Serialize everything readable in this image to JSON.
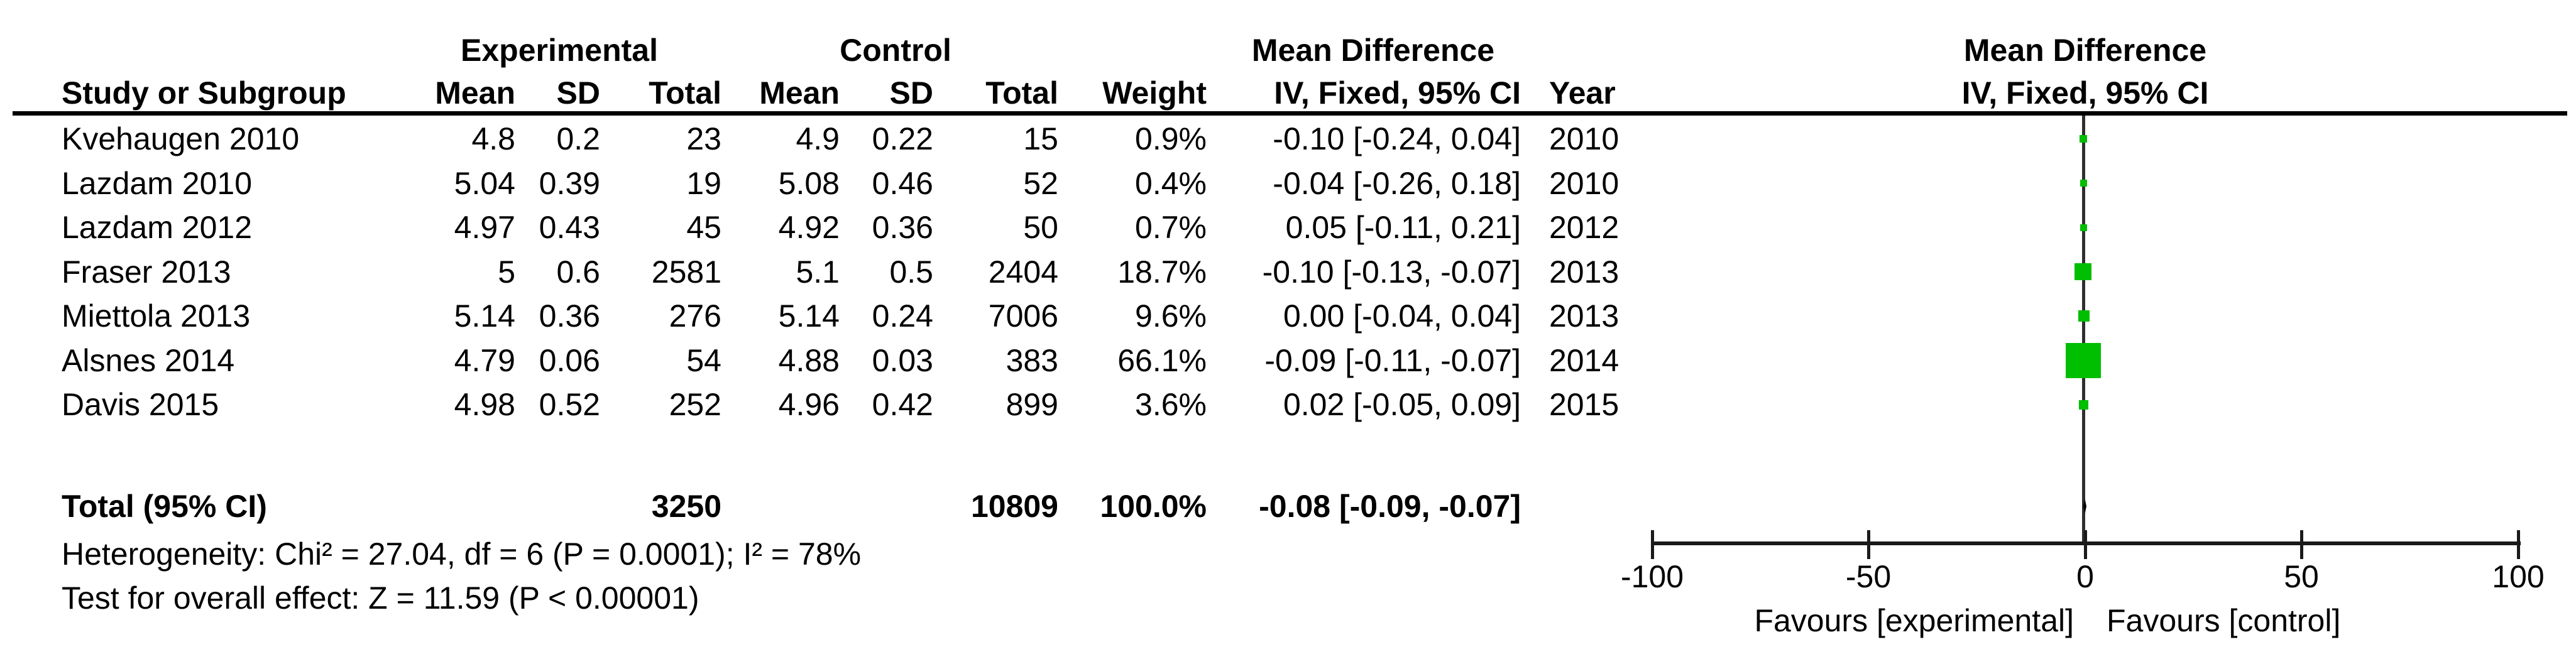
{
  "table": {
    "group_headers": {
      "experimental": "Experimental",
      "control": "Control",
      "mean_difference": "Mean Difference"
    },
    "columns": {
      "study": "Study or Subgroup",
      "mean1": "Mean",
      "sd1": "SD",
      "total1": "Total",
      "mean2": "Mean",
      "sd2": "SD",
      "total2": "Total",
      "weight": "Weight",
      "ci": "IV, Fixed, 95% CI",
      "year": "Year"
    },
    "rows": [
      {
        "study": "Kvehaugen 2010",
        "mean1": "4.8",
        "sd1": "0.2",
        "total1": "23",
        "mean2": "4.9",
        "sd2": "0.22",
        "total2": "15",
        "weight": "0.9%",
        "ci": "-0.10 [-0.24, 0.04]",
        "year": "2010"
      },
      {
        "study": "Lazdam 2010",
        "mean1": "5.04",
        "sd1": "0.39",
        "total1": "19",
        "mean2": "5.08",
        "sd2": "0.46",
        "total2": "52",
        "weight": "0.4%",
        "ci": "-0.04 [-0.26, 0.18]",
        "year": "2010"
      },
      {
        "study": "Lazdam 2012",
        "mean1": "4.97",
        "sd1": "0.43",
        "total1": "45",
        "mean2": "4.92",
        "sd2": "0.36",
        "total2": "50",
        "weight": "0.7%",
        "ci": "0.05 [-0.11, 0.21]",
        "year": "2012"
      },
      {
        "study": "Fraser 2013",
        "mean1": "5",
        "sd1": "0.6",
        "total1": "2581",
        "mean2": "5.1",
        "sd2": "0.5",
        "total2": "2404",
        "weight": "18.7%",
        "ci": "-0.10 [-0.13, -0.07]",
        "year": "2013"
      },
      {
        "study": "Miettola 2013",
        "mean1": "5.14",
        "sd1": "0.36",
        "total1": "276",
        "mean2": "5.14",
        "sd2": "0.24",
        "total2": "7006",
        "weight": "9.6%",
        "ci": "0.00 [-0.04, 0.04]",
        "year": "2013"
      },
      {
        "study": "Alsnes 2014",
        "mean1": "4.79",
        "sd1": "0.06",
        "total1": "54",
        "mean2": "4.88",
        "sd2": "0.03",
        "total2": "383",
        "weight": "66.1%",
        "ci": "-0.09 [-0.11, -0.07]",
        "year": "2014"
      },
      {
        "study": "Davis 2015",
        "mean1": "4.98",
        "sd1": "0.52",
        "total1": "252",
        "mean2": "4.96",
        "sd2": "0.42",
        "total2": "899",
        "weight": "3.6%",
        "ci": "0.02 [-0.05, 0.09]",
        "year": "2015"
      }
    ],
    "total": {
      "label": "Total (95% CI)",
      "total1": "3250",
      "total2": "10809",
      "weight": "100.0%",
      "ci": "-0.08 [-0.09, -0.07]"
    },
    "heterogeneity": "Heterogeneity: Chi² = 27.04, df = 6 (P = 0.0001); I² = 78%",
    "overall_effect": "Test for overall effect: Z = 11.59 (P < 0.00001)"
  },
  "plot": {
    "title": "Mean Difference",
    "subtitle": "IV, Fixed, 95% CI",
    "axis_ticks": [
      "-100",
      "-50",
      "0",
      "50",
      "100"
    ],
    "favours_left": "Favours [experimental]",
    "favours_right": "Favours [control]",
    "marker_color": "#00BE00",
    "line_color": "#1a1a1a"
  },
  "chart_data": {
    "type": "scatter",
    "subtype": "forest-plot",
    "title": "Mean Difference",
    "effect_measure": "IV, Fixed, 95% CI",
    "xlim": [
      -100,
      100
    ],
    "x_ticks": [
      -100,
      -50,
      0,
      50,
      100
    ],
    "x_label_left": "Favours [experimental]",
    "x_label_right": "Favours [control]",
    "grid": false,
    "studies": [
      {
        "name": "Kvehaugen 2010",
        "md": -0.1,
        "ci_low": -0.24,
        "ci_high": 0.04,
        "weight_pct": 0.9,
        "year": 2010,
        "marker_px": 12
      },
      {
        "name": "Lazdam 2010",
        "md": -0.04,
        "ci_low": -0.26,
        "ci_high": 0.18,
        "weight_pct": 0.4,
        "year": 2010,
        "marker_px": 11
      },
      {
        "name": "Lazdam 2012",
        "md": 0.05,
        "ci_low": -0.11,
        "ci_high": 0.21,
        "weight_pct": 0.7,
        "year": 2012,
        "marker_px": 11
      },
      {
        "name": "Fraser 2013",
        "md": -0.1,
        "ci_low": -0.13,
        "ci_high": -0.07,
        "weight_pct": 18.7,
        "year": 2013,
        "marker_px": 27
      },
      {
        "name": "Miettola 2013",
        "md": 0.0,
        "ci_low": -0.04,
        "ci_high": 0.04,
        "weight_pct": 9.6,
        "year": 2013,
        "marker_px": 18
      },
      {
        "name": "Alsnes 2014",
        "md": -0.09,
        "ci_low": -0.11,
        "ci_high": -0.07,
        "weight_pct": 66.1,
        "year": 2014,
        "marker_px": 56
      },
      {
        "name": "Davis 2015",
        "md": 0.02,
        "ci_low": -0.05,
        "ci_high": 0.09,
        "weight_pct": 3.6,
        "year": 2015,
        "marker_px": 15
      }
    ],
    "total": {
      "name": "Total (95% CI)",
      "md": -0.08,
      "ci_low": -0.09,
      "ci_high": -0.07,
      "weight_pct": 100.0
    }
  }
}
